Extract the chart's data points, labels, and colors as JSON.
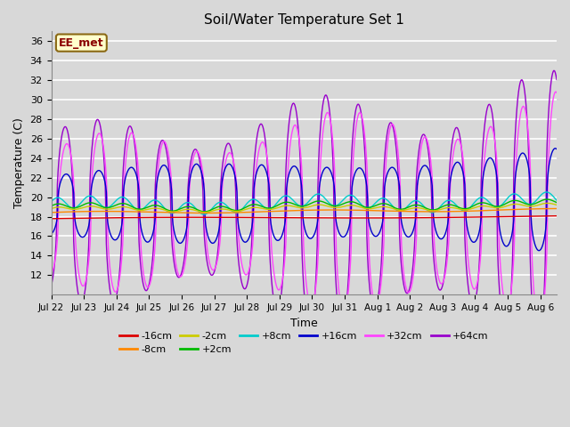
{
  "title": "Soil/Water Temperature Set 1",
  "xlabel": "Time",
  "ylabel": "Temperature (C)",
  "annotation": "EE_met",
  "ylim": [
    10,
    37
  ],
  "yticks": [
    12,
    14,
    16,
    18,
    20,
    22,
    24,
    26,
    28,
    30,
    32,
    34,
    36
  ],
  "num_days": 15.5,
  "num_points": 744,
  "bg_color": "#d8d8d8",
  "series_colors": {
    "-16cm": "#dd0000",
    "-8cm": "#ff8800",
    "-2cm": "#cccc00",
    "+2cm": "#00bb00",
    "+8cm": "#00cccc",
    "+16cm": "#0000cc",
    "+32cm": "#ff44ff",
    "+64cm": "#9900cc"
  },
  "legend_order": [
    "-16cm",
    "-8cm",
    "-2cm",
    "+2cm",
    "+8cm",
    "+16cm",
    "+32cm",
    "+64cm"
  ],
  "xtick_labels": [
    "Jul 22",
    "Jul 23",
    "Jul 24",
    "Jul 25",
    "Jul 26",
    "Jul 27",
    "Jul 28",
    "Jul 29",
    "Jul 30",
    "Jul 31",
    "Aug 1",
    "Aug 2",
    "Aug 3",
    "Aug 4",
    "Aug 5",
    "Aug 6"
  ],
  "base_temp": 18.0,
  "figsize": [
    6.4,
    4.8
  ],
  "dpi": 100
}
